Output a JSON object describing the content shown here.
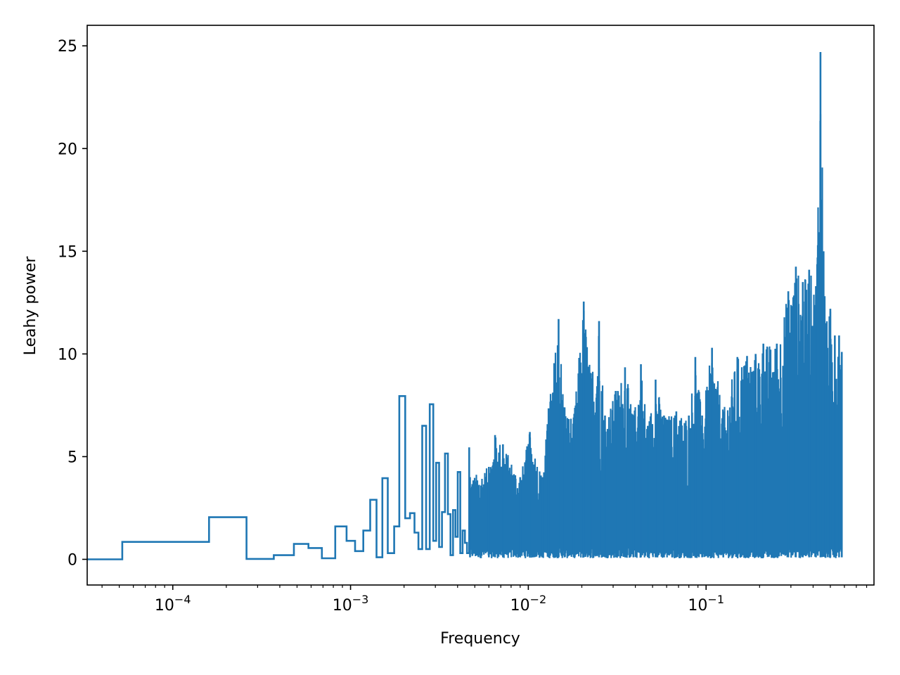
{
  "chart_data": {
    "type": "line",
    "title": "",
    "xlabel": "Frequency",
    "ylabel": "Leahy power",
    "xscale": "log",
    "xlim": [
      3.3e-05,
      0.88
    ],
    "ylim": [
      -1.25,
      26
    ],
    "grid": false,
    "legend": "none",
    "colors": {
      "series": "#1f77b4"
    },
    "x_ticks": [
      {
        "value": 0.0001,
        "base": "10",
        "exp": "−4"
      },
      {
        "value": 0.001,
        "base": "10",
        "exp": "−3"
      },
      {
        "value": 0.01,
        "base": "10",
        "exp": "−2"
      },
      {
        "value": 0.1,
        "base": "10",
        "exp": "−1"
      }
    ],
    "y_ticks": [
      0,
      5,
      10,
      15,
      20,
      25
    ],
    "series": [
      {
        "step": "pre",
        "x": [
          3.3e-05,
          5.2e-05,
          0.00016,
          0.00026,
          0.00037,
          0.00048,
          0.00058,
          0.00069,
          0.00082,
          0.00095,
          0.00106,
          0.00118,
          0.00129,
          0.0014,
          0.00151,
          0.00162,
          0.00176,
          0.00188,
          0.00203,
          0.00216,
          0.00229,
          0.00241,
          0.00253,
          0.00266,
          0.00279,
          0.00292,
          0.00303,
          0.00315,
          0.00327,
          0.0034,
          0.00353,
          0.00365,
          0.00377,
          0.00389,
          0.00401,
          0.00414,
          0.00427,
          0.0044,
          0.00452,
          0.00465
        ],
        "y": [
          0,
          0.85,
          2.05,
          0.02,
          0.2,
          0.75,
          0.55,
          0.05,
          1.6,
          0.9,
          0.4,
          1.4,
          2.9,
          0.1,
          3.95,
          0.3,
          1.6,
          7.95,
          2.0,
          2.25,
          1.3,
          0.5,
          6.5,
          0.5,
          7.55,
          0.9,
          4.7,
          0.6,
          2.3,
          5.15,
          2.2,
          0.2,
          2.4,
          1.1,
          4.25,
          0.3,
          1.4,
          0.8,
          0.3,
          5.45
        ]
      }
    ],
    "noise_band": {
      "x_start": 0.0047,
      "x_end": 0.58,
      "envelope": [
        [
          0.0047,
          4.0
        ],
        [
          0.006,
          4.5
        ],
        [
          0.0065,
          6.05
        ],
        [
          0.0072,
          5.6
        ],
        [
          0.009,
          4.0
        ],
        [
          0.0102,
          6.2
        ],
        [
          0.012,
          4.0
        ],
        [
          0.013,
          7.35
        ],
        [
          0.0148,
          11.7
        ],
        [
          0.016,
          7.4
        ],
        [
          0.018,
          6.9
        ],
        [
          0.0205,
          12.55
        ],
        [
          0.0225,
          9.05
        ],
        [
          0.025,
          11.6
        ],
        [
          0.027,
          7.0
        ],
        [
          0.031,
          8.2
        ],
        [
          0.035,
          9.35
        ],
        [
          0.039,
          7.0
        ],
        [
          0.043,
          9.5
        ],
        [
          0.047,
          6.5
        ],
        [
          0.052,
          8.75
        ],
        [
          0.058,
          7.0
        ],
        [
          0.068,
          7.2
        ],
        [
          0.08,
          7.0
        ],
        [
          0.087,
          9.85
        ],
        [
          0.095,
          7.0
        ],
        [
          0.108,
          10.3
        ],
        [
          0.125,
          7.2
        ],
        [
          0.15,
          9.85
        ],
        [
          0.17,
          9.9
        ],
        [
          0.19,
          10.0
        ],
        [
          0.21,
          10.5
        ],
        [
          0.25,
          10.5
        ],
        [
          0.29,
          13.05
        ],
        [
          0.32,
          14.25
        ],
        [
          0.35,
          13.5
        ],
        [
          0.38,
          14.1
        ],
        [
          0.415,
          13.3
        ],
        [
          0.44,
          24.7
        ],
        [
          0.47,
          11.5
        ],
        [
          0.5,
          12.2
        ],
        [
          0.53,
          10.9
        ],
        [
          0.56,
          10.9
        ],
        [
          0.58,
          10.1
        ]
      ],
      "floor": 0.05
    }
  }
}
